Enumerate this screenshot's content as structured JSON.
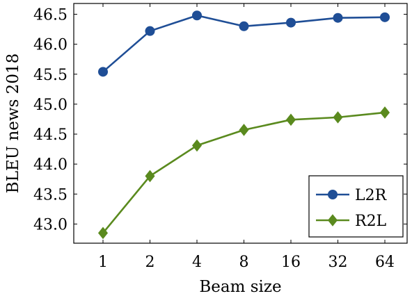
{
  "chart_data": {
    "type": "line",
    "categories": [
      "1",
      "2",
      "4",
      "8",
      "16",
      "32",
      "64"
    ],
    "xlabel": "Beam size",
    "ylabel": "BLEU news 2018",
    "ylim": [
      42.68,
      46.68
    ],
    "yticks": [
      "43.0",
      "43.5",
      "44.0",
      "44.5",
      "45.0",
      "45.5",
      "46.0",
      "46.5"
    ],
    "grid": false,
    "legend_position": "bottom-right",
    "series": [
      {
        "name": "L2R",
        "values": [
          45.54,
          46.22,
          46.48,
          46.3,
          46.36,
          46.44,
          46.45
        ],
        "color": "#1f4e96",
        "marker": "circle"
      },
      {
        "name": "R2L",
        "values": [
          42.85,
          43.8,
          44.31,
          44.57,
          44.74,
          44.78,
          44.86
        ],
        "color": "#5a8a1e",
        "marker": "diamond"
      }
    ]
  }
}
